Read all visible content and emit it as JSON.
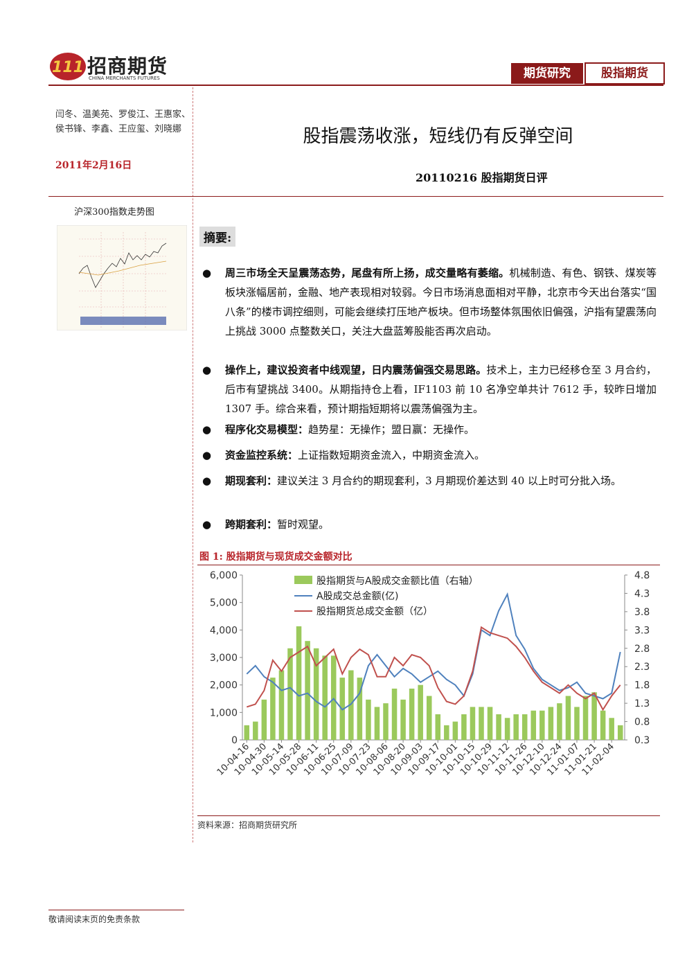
{
  "header": {
    "brand": "招商期货",
    "brand_en": "CHINA MERCHANTS FUTURES",
    "tab1": "期货研究",
    "tab2": "股指期货"
  },
  "authors": "闫冬、温美苑、罗俊江、王惠家、侯书锋、李鑫、王应玺、刘晓娜",
  "date": "2011年2月16日",
  "title": "股指震荡收涨，短线仍有反弹空间",
  "subtitle": "20110216 股指期货日评",
  "side_chart_title": "沪深300指数走势图",
  "summary_heading": "摘要:",
  "bullets": [
    {
      "lead": "周三市场全天呈震荡态势，尾盘有所上扬，成交量略有萎缩。",
      "text": "机械制造、有色、钢铁、煤炭等板块涨幅居前，金融、地产表现相对较弱。今日市场消息面相对平静，北京市今天出台落实“国八条”的楼市调控细则，可能会继续打压地产板块。但市场整体氛围依旧偏强，沪指有望震荡向上挑战 3000 点整数关口，关注大盘蓝筹股能否再次启动。"
    },
    {
      "lead": "操作上，建议投资者中线观望，日内震荡偏强交易思路。",
      "text": "技术上，主力已经移仓至 3 月合约，后市有望挑战 3400。从期指持仓上看，IF1103 前 10 名净空单共计 7612 手，较昨日增加 1307 手。综合来看，预计期指短期将以震荡偏强为主。"
    },
    {
      "lead": "程序化交易模型：",
      "text": "趋势星：无操作；盟日赢：无操作。"
    },
    {
      "lead": "资金监控系统：",
      "text": "上证指数短期资金流入，中期资金流入。"
    },
    {
      "lead": "期现套利：",
      "text": "建议关注 3 月合约的期现套利，3 月期现价差达到 40 以上时可分批入场。"
    },
    {
      "lead": "跨期套利：",
      "text": "暂时观望。"
    }
  ],
  "chart_data": {
    "type": "bar-line",
    "title": "图 1: 股指期货与现货成交金额对比",
    "categories": [
      "10-04-16",
      null,
      "10-04-30",
      null,
      "10-05-14",
      null,
      "10-05-28",
      null,
      "10-06-11",
      null,
      "10-06-25",
      null,
      "10-07-09",
      null,
      "10-07-23",
      null,
      "10-08-06",
      null,
      "10-08-20",
      null,
      "10-09-03",
      null,
      "10-09-17",
      null,
      "10-10-01",
      null,
      "10-10-15",
      null,
      "10-10-29",
      null,
      "10-11-12",
      null,
      "10-11-26",
      null,
      "10-12-10",
      null,
      "10-12-24",
      null,
      "11-01-07",
      null,
      "11-01-21",
      null,
      "11-02-04",
      null
    ],
    "series": [
      {
        "name": "股指期货与A股成交金额比值（右轴）",
        "color": "#9bc95c",
        "kind": "bar",
        "axis": "y2",
        "values": [
          0.7,
          0.8,
          1.4,
          2.0,
          2.2,
          2.8,
          3.4,
          3.0,
          2.8,
          2.6,
          2.6,
          2.0,
          2.2,
          2.0,
          1.4,
          1.2,
          1.3,
          1.7,
          1.4,
          1.7,
          1.8,
          1.5,
          1.0,
          0.7,
          0.8,
          1.0,
          1.2,
          1.2,
          1.2,
          1.0,
          0.9,
          1.0,
          1.0,
          1.1,
          1.1,
          1.2,
          1.3,
          1.5,
          1.2,
          1.5,
          1.6,
          1.1,
          0.9,
          0.7
        ]
      },
      {
        "name": "A股成交总金额(亿)",
        "color": "#4f81bd",
        "kind": "line",
        "values": [
          2400,
          2700,
          2300,
          2100,
          1800,
          1900,
          1600,
          1700,
          1400,
          1200,
          1500,
          1100,
          1300,
          1700,
          2700,
          3100,
          2700,
          2300,
          2600,
          2400,
          2100,
          2300,
          2500,
          2200,
          2000,
          1600,
          2400,
          4000,
          3800,
          4700,
          5300,
          3800,
          3300,
          2600,
          2200,
          2000,
          1800,
          1900,
          2100,
          1700,
          1600,
          1500,
          1700,
          3200
        ]
      },
      {
        "name": "股指期货总成交金额（亿）",
        "color": "#c0504d",
        "kind": "line",
        "values": [
          1200,
          1300,
          1800,
          2900,
          2500,
          3000,
          3200,
          3400,
          2700,
          3000,
          3300,
          2400,
          3000,
          3300,
          3100,
          2300,
          2300,
          3000,
          2700,
          3100,
          3000,
          2700,
          1900,
          1400,
          1300,
          1600,
          2500,
          4100,
          3900,
          3800,
          3700,
          3400,
          3000,
          2500,
          2100,
          1900,
          1700,
          2000,
          1700,
          1500,
          1700,
          1100,
          1600,
          2000
        ]
      }
    ],
    "ylim": [
      0,
      6000
    ],
    "yticks": [
      0,
      {
        "value": 1000,
        "label": "1,000"
      },
      {
        "value": 2000,
        "label": "2,000"
      },
      {
        "value": 3000,
        "label": "3,000"
      },
      {
        "value": 4000,
        "label": "4,000"
      },
      {
        "value": 5000,
        "label": "5,000"
      },
      {
        "value": 6000,
        "label": "6,000"
      }
    ],
    "y2lim": [
      0.3,
      4.8
    ],
    "y2ticks": [
      0.3,
      0.8,
      1.3,
      1.8,
      2.3,
      2.8,
      3.3,
      3.8,
      4.3,
      4.8
    ],
    "source": "资料来源：招商期货研究所"
  },
  "footer": "敬请阅读末页的免责条款"
}
